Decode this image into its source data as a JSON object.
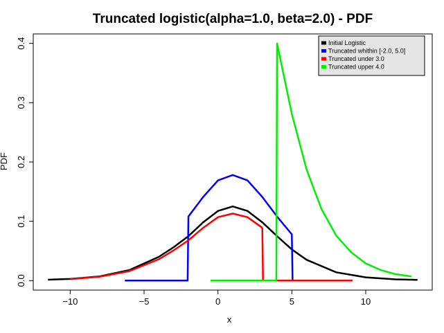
{
  "chart_data": {
    "type": "line",
    "title": "Truncated logistic(alpha=1.0, beta=2.0) - PDF",
    "xlabel": "x",
    "ylabel": "PDF",
    "xlim": [
      -12.5,
      14.5
    ],
    "ylim": [
      -0.016,
      0.416
    ],
    "x_ticks": [
      -10,
      -5,
      0,
      5,
      10
    ],
    "x_tick_labels": [
      "−10",
      "−5",
      "0",
      "5",
      "10"
    ],
    "y_ticks": [
      0.0,
      0.1,
      0.2,
      0.3,
      0.4
    ],
    "y_tick_labels": [
      "0.0",
      "0.1",
      "0.2",
      "0.3",
      "0.4"
    ],
    "grid": false,
    "legend_position": "top-right",
    "legend_background": "#e5e5e5",
    "series": [
      {
        "name": "Initial Logistic",
        "color": "#000000",
        "x": [
          -11.5,
          -10,
          -8,
          -6,
          -4,
          -3,
          -2,
          -1,
          0,
          1,
          2,
          3,
          4,
          5,
          6,
          8,
          10,
          12,
          13.5
        ],
        "y": [
          0.0015,
          0.0028,
          0.0071,
          0.0177,
          0.04,
          0.0563,
          0.075,
          0.0983,
          0.1175,
          0.125,
          0.1175,
          0.0983,
          0.075,
          0.0525,
          0.035,
          0.014,
          0.0055,
          0.0021,
          0.0012
        ]
      },
      {
        "name": "Truncated whithin [-2.0, 5.0]",
        "color": "#0000ff",
        "x": [
          -6.3,
          -2.05,
          -2.0,
          -1,
          0,
          1,
          2,
          3,
          4,
          5.0,
          5.05,
          9.1
        ],
        "y": [
          0.0,
          0.0,
          0.108,
          0.141,
          0.169,
          0.178,
          0.169,
          0.141,
          0.108,
          0.078,
          0.0,
          0.0
        ]
      },
      {
        "name": "Truncated under 3.0",
        "color": "#ff0000",
        "x": [
          -10,
          -8,
          -6,
          -4,
          -3,
          -2,
          -1,
          0,
          1,
          2,
          2.95,
          3.0,
          3.05,
          9.1
        ],
        "y": [
          0.0025,
          0.0065,
          0.016,
          0.036,
          0.051,
          0.068,
          0.089,
          0.107,
          0.113,
          0.107,
          0.09,
          0.088,
          0.0,
          0.0
        ]
      },
      {
        "name": "Truncated upper 4.0",
        "color": "#00ee00",
        "x": [
          -0.5,
          3.95,
          4.0,
          5,
          6,
          7,
          8,
          9,
          10,
          11,
          12,
          13.1
        ],
        "y": [
          0.0,
          0.0,
          0.4,
          0.281,
          0.187,
          0.121,
          0.076,
          0.048,
          0.029,
          0.018,
          0.011,
          0.007
        ]
      }
    ]
  }
}
